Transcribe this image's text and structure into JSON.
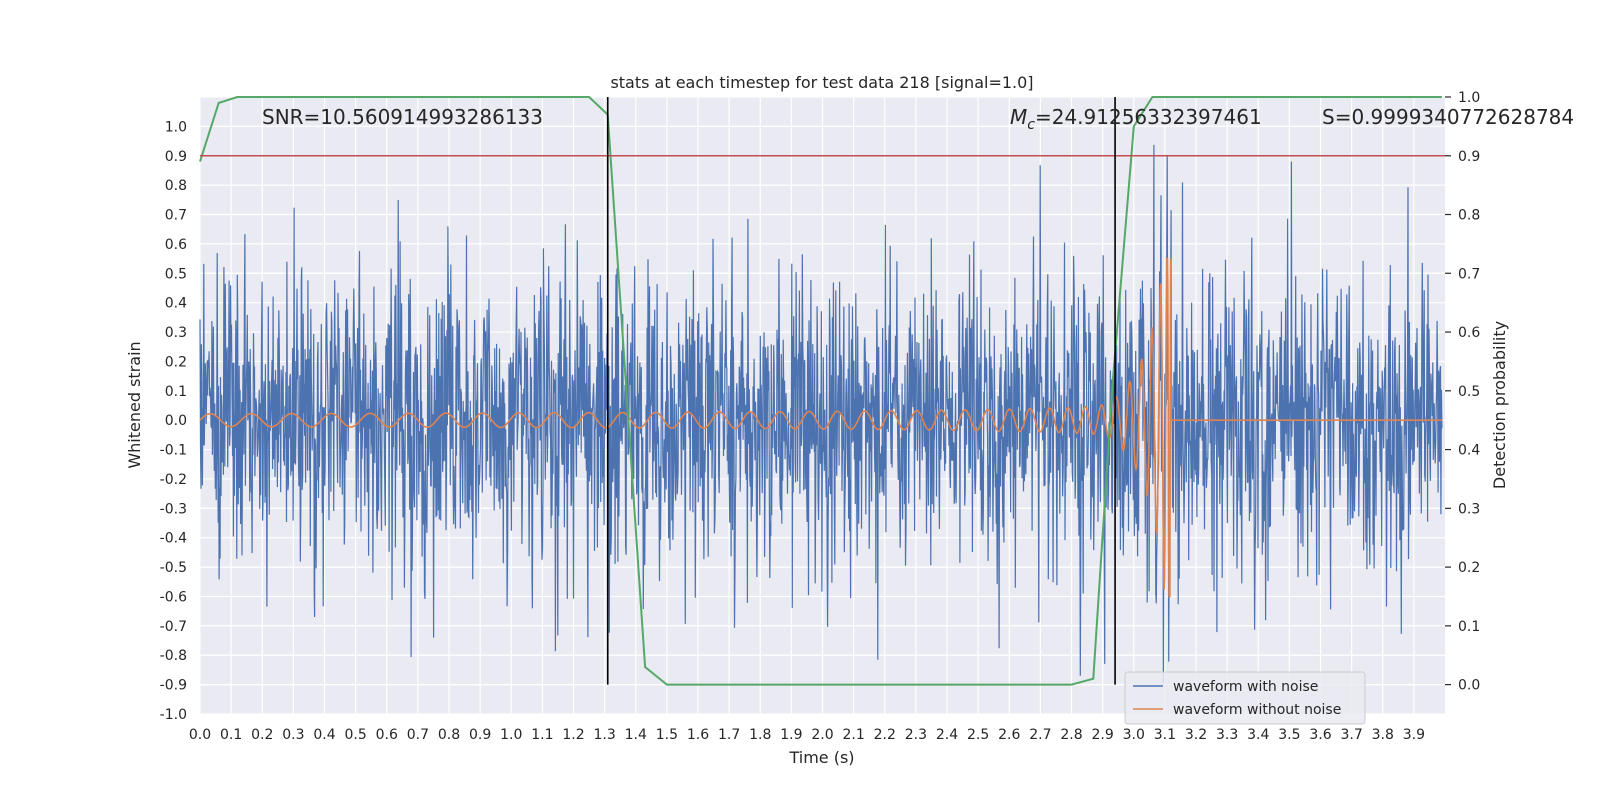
{
  "chart_data": {
    "type": "line",
    "title": "stats at each timestep for test data 218 [signal=1.0]",
    "xlabel": "Time (s)",
    "ylabel": "Whitened strain",
    "y2label": "Detection probability",
    "xlim": [
      0.0,
      4.0
    ],
    "ylim": [
      -1.0,
      1.1
    ],
    "y2lim": [
      -0.05,
      1.0
    ],
    "xticks": [
      "0.0",
      "0.1",
      "0.2",
      "0.3",
      "0.4",
      "0.5",
      "0.6",
      "0.7",
      "0.8",
      "0.9",
      "1.0",
      "1.1",
      "1.2",
      "1.3",
      "1.4",
      "1.5",
      "1.6",
      "1.7",
      "1.8",
      "1.9",
      "2.0",
      "2.1",
      "2.2",
      "2.3",
      "2.4",
      "2.5",
      "2.6",
      "2.7",
      "2.8",
      "2.9",
      "3.0",
      "3.1",
      "3.2",
      "3.3",
      "3.4",
      "3.5",
      "3.6",
      "3.7",
      "3.8",
      "3.9"
    ],
    "yticks": [
      "1.0",
      "0.9",
      "0.8",
      "0.7",
      "0.6",
      "0.5",
      "0.4",
      "0.3",
      "0.2",
      "0.1",
      "0.0",
      "-0.1",
      "-0.2",
      "-0.3",
      "-0.4",
      "-0.5",
      "-0.6",
      "-0.7",
      "-0.8",
      "-0.9",
      "-1.0"
    ],
    "y2ticks": [
      "1.0",
      "0.9",
      "0.8",
      "0.7",
      "0.6",
      "0.5",
      "0.4",
      "0.3",
      "0.2",
      "0.1",
      "0.0"
    ],
    "annotations": {
      "snr": "SNR=10.560914993286133",
      "mc_symbol": "M",
      "mc_sub": "c",
      "mc_value": "=24.91256332397461",
      "s": "S=0.9999340772628784"
    },
    "threshold": {
      "value": 0.9,
      "axis": "y2",
      "color": "#c44e52"
    },
    "vlines": [
      1.31,
      2.94
    ],
    "series": [
      {
        "name": "waveform with noise",
        "color": "#4c72b0",
        "axis": "y",
        "kind": "noise",
        "amplitude": 0.3,
        "max": 1.0,
        "min": -0.9
      },
      {
        "name": "waveform without noise",
        "color": "#dd8452",
        "axis": "y",
        "kind": "chirp",
        "merger_time": 3.12,
        "peak": 0.55
      },
      {
        "name": "detection probability",
        "color": "#55a868",
        "axis": "y2",
        "x": [
          0.0,
          0.06,
          0.12,
          1.25,
          1.31,
          1.37,
          1.43,
          1.5,
          1.56,
          2.8,
          2.87,
          2.93,
          3.0,
          3.06,
          3.12,
          3.99
        ],
        "y": [
          0.89,
          0.99,
          1.0,
          1.0,
          0.97,
          0.5,
          0.03,
          0.0,
          0.0,
          0.0,
          0.01,
          0.5,
          0.95,
          1.0,
          1.0,
          1.0
        ]
      }
    ],
    "legend": {
      "position": "lower-right",
      "entries": [
        {
          "label": "waveform with noise",
          "color": "#4c72b0"
        },
        {
          "label": "waveform without noise",
          "color": "#dd8452"
        }
      ]
    }
  }
}
